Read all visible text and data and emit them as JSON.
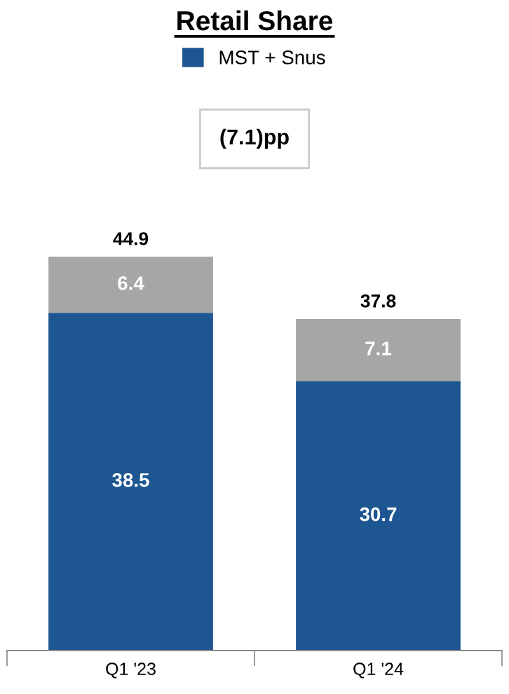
{
  "chart_data": {
    "type": "bar",
    "title": "Retail Share",
    "categories": [
      "Q1 '23",
      "Q1 '24"
    ],
    "series": [
      {
        "name": "MST + Snus",
        "color": "#1d5690",
        "values": [
          38.5,
          30.7
        ]
      },
      {
        "color": "#a6a6a6",
        "values": [
          6.4,
          7.1
        ]
      }
    ],
    "stacked": true,
    "data_labels": true,
    "totals": [
      "44.9",
      "37.8"
    ],
    "annotations": [
      "(7.1)pp"
    ],
    "legend": "top"
  }
}
